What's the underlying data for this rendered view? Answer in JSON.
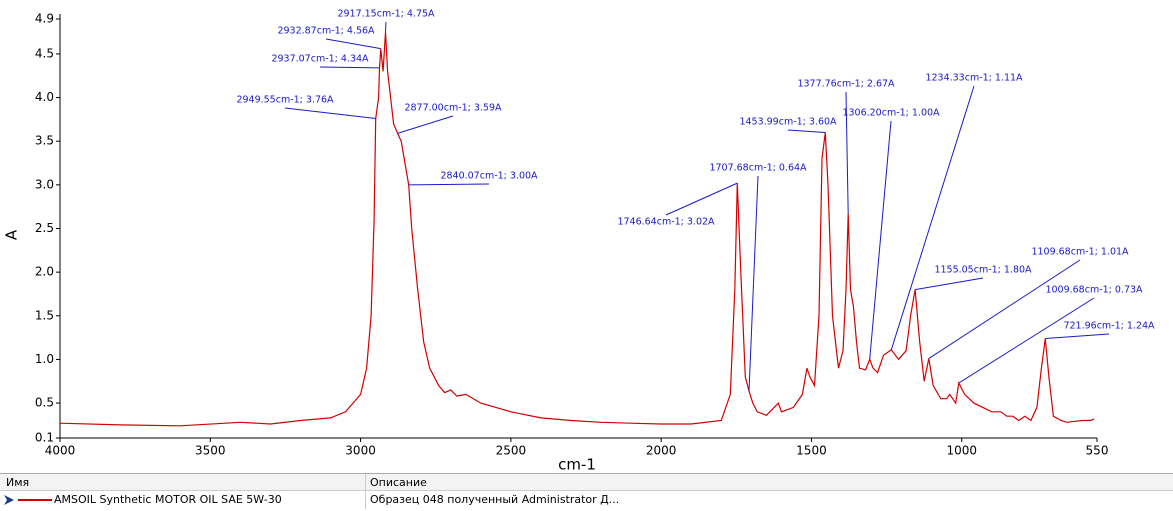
{
  "chart_data": {
    "type": "line",
    "xlabel": "cm-1",
    "ylabel": "A",
    "xlim": [
      4000,
      550
    ],
    "ylim": [
      0.1,
      4.9
    ],
    "xticks": [
      4000,
      3500,
      3000,
      2500,
      2000,
      1500,
      1000,
      550
    ],
    "yticks": [
      0.1,
      0.5,
      {
        "value": 1,
        "label": "1.0"
      },
      1.5,
      {
        "value": 2,
        "label": "2.0"
      },
      2.5,
      {
        "value": 3,
        "label": "3.0"
      },
      3.5,
      {
        "value": 4,
        "label": "4.0"
      },
      4.5,
      4.9
    ],
    "series": [
      {
        "color": "#d40000",
        "x": [
          4000,
          3800,
          3600,
          3400,
          3300,
          3200,
          3100,
          3050,
          3000,
          2980,
          2965,
          2955,
          2949.55,
          2940,
          2937.07,
          2932.87,
          2925,
          2917.15,
          2910,
          2900,
          2890,
          2877,
          2865,
          2850,
          2840.07,
          2830,
          2810,
          2790,
          2770,
          2740,
          2720,
          2700,
          2680,
          2650,
          2600,
          2500,
          2400,
          2300,
          2200,
          2100,
          2000,
          1900,
          1800,
          1770,
          1755,
          1746.64,
          1735,
          1720,
          1707.68,
          1695,
          1680,
          1650,
          1610,
          1600,
          1560,
          1530,
          1515,
          1505,
          1490,
          1475,
          1465,
          1453.99,
          1445,
          1430,
          1410,
          1395,
          1385,
          1377.76,
          1370,
          1360,
          1350,
          1340,
          1320,
          1306.2,
          1295,
          1280,
          1260,
          1234.33,
          1210,
          1185,
          1170,
          1155.05,
          1140,
          1125,
          1109.68,
          1095,
          1070,
          1050,
          1040,
          1020,
          1009.68,
          990,
          960,
          930,
          900,
          870,
          850,
          830,
          810,
          790,
          770,
          750,
          735,
          721.96,
          710,
          695,
          670,
          650,
          600,
          570,
          560
        ],
        "values": [
          0.27,
          0.25,
          0.24,
          0.28,
          0.26,
          0.3,
          0.33,
          0.4,
          0.6,
          0.9,
          1.5,
          2.6,
          3.76,
          4.0,
          4.34,
          4.56,
          4.3,
          4.75,
          4.3,
          4.0,
          3.7,
          3.59,
          3.5,
          3.2,
          3.0,
          2.5,
          1.8,
          1.2,
          0.9,
          0.7,
          0.62,
          0.65,
          0.58,
          0.6,
          0.5,
          0.4,
          0.33,
          0.3,
          0.28,
          0.27,
          0.26,
          0.26,
          0.3,
          0.6,
          1.8,
          3.02,
          2.0,
          0.8,
          0.64,
          0.5,
          0.4,
          0.36,
          0.5,
          0.4,
          0.45,
          0.6,
          0.9,
          0.8,
          0.7,
          1.5,
          3.3,
          3.6,
          3.0,
          1.5,
          0.9,
          1.1,
          1.8,
          2.67,
          1.8,
          1.6,
          1.2,
          0.9,
          0.88,
          1.0,
          0.9,
          0.85,
          1.05,
          1.11,
          1.0,
          1.1,
          1.5,
          1.8,
          1.2,
          0.75,
          1.01,
          0.7,
          0.55,
          0.55,
          0.6,
          0.5,
          0.73,
          0.6,
          0.5,
          0.45,
          0.4,
          0.4,
          0.35,
          0.35,
          0.3,
          0.35,
          0.3,
          0.45,
          0.9,
          1.24,
          0.8,
          0.35,
          0.3,
          0.28,
          0.3,
          0.3,
          0.32
        ]
      }
    ],
    "annotations": [
      {
        "x": 2917.15,
        "y": 4.75,
        "text": "2917.15cm-1; 4.75A"
      },
      {
        "x": 2932.87,
        "y": 4.56,
        "text": "2932.87cm-1; 4.56A"
      },
      {
        "x": 2937.07,
        "y": 4.34,
        "text": "2937.07cm-1; 4.34A"
      },
      {
        "x": 2949.55,
        "y": 3.76,
        "text": "2949.55cm-1; 3.76A"
      },
      {
        "x": 2877,
        "y": 3.59,
        "text": "2877.00cm-1; 3.59A"
      },
      {
        "x": 2840.07,
        "y": 3.0,
        "text": "2840.07cm-1; 3.00A"
      },
      {
        "x": 1746.64,
        "y": 3.02,
        "text": "1746.64cm-1; 3.02A"
      },
      {
        "x": 1707.68,
        "y": 0.64,
        "text": "1707.68cm-1; 0.64A"
      },
      {
        "x": 1453.99,
        "y": 3.6,
        "text": "1453.99cm-1; 3.60A"
      },
      {
        "x": 1377.76,
        "y": 2.67,
        "text": "1377.76cm-1; 2.67A"
      },
      {
        "x": 1306.2,
        "y": 1.0,
        "text": "1306.20cm-1; 1.00A"
      },
      {
        "x": 1234.33,
        "y": 1.11,
        "text": "1234.33cm-1; 1.11A"
      },
      {
        "x": 1155.05,
        "y": 1.8,
        "text": "1155.05cm-1; 1.80A"
      },
      {
        "x": 1109.68,
        "y": 1.01,
        "text": "1109.68cm-1; 1.01A"
      },
      {
        "x": 1009.68,
        "y": 0.73,
        "text": "1009.68cm-1; 0.73A"
      },
      {
        "x": 721.96,
        "y": 1.24,
        "text": "721.96cm-1; 1.24A"
      }
    ]
  },
  "table": {
    "headers": [
      "Имя",
      "Описание"
    ],
    "rows": [
      [
        "AMSOIL Synthetic MOTOR OIL SAE 5W-30",
        "Образец 048 полученный Administrator Д..."
      ]
    ]
  }
}
